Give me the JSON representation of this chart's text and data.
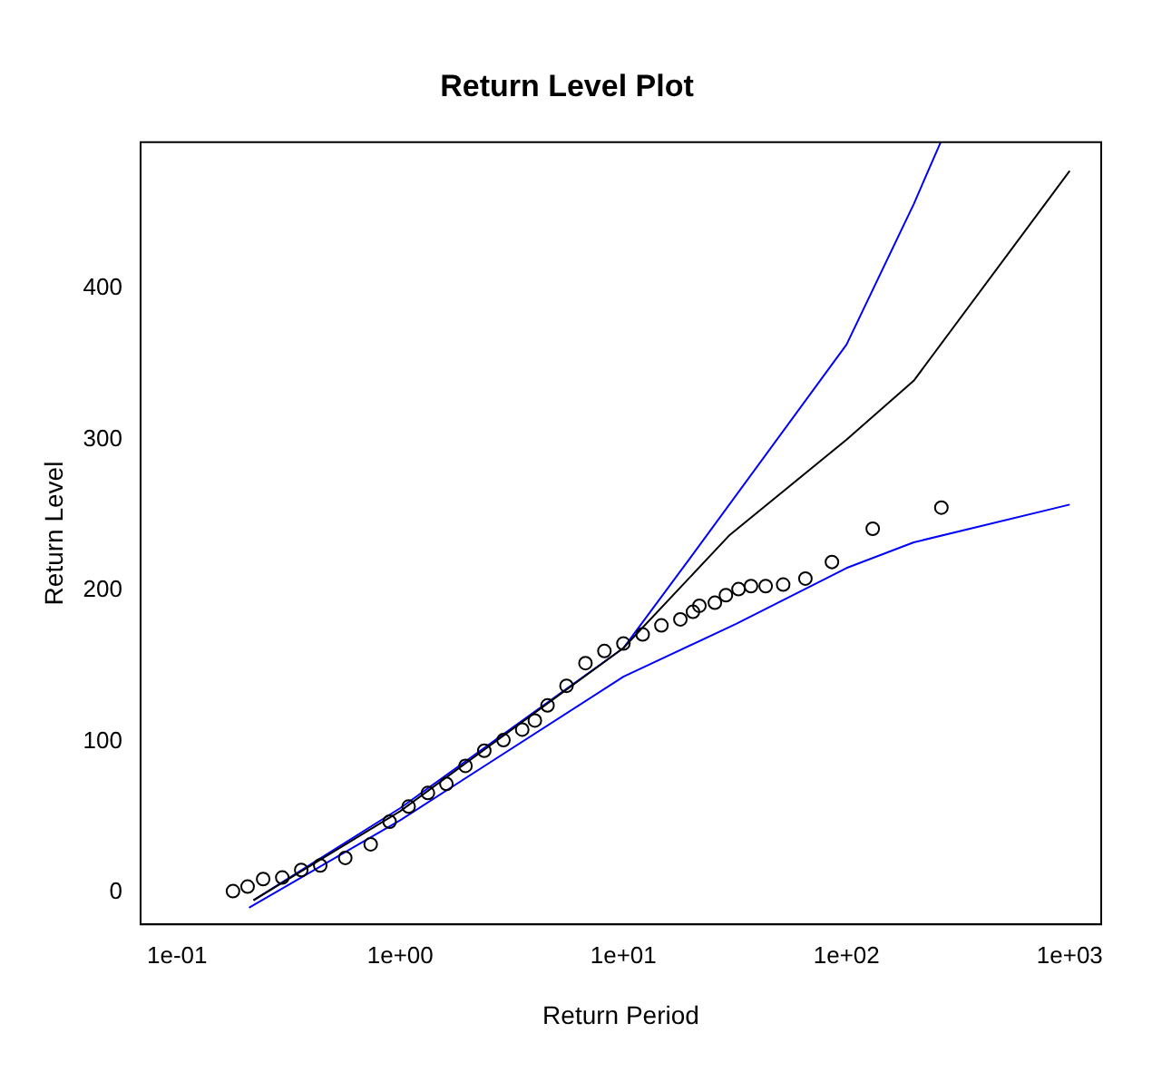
{
  "chart_data": {
    "type": "scatter",
    "title": "Return Level Plot",
    "xlabel": "Return Period",
    "ylabel": "Return Level",
    "log": "x",
    "grid": false,
    "legend": false,
    "xlim": [
      0.0686,
      1384
    ],
    "ylim": [
      -21,
      497
    ],
    "xticks": [
      {
        "value": 0.1,
        "label": "1e-01"
      },
      {
        "value": 1,
        "label": "1e+00"
      },
      {
        "value": 10,
        "label": "1e+01"
      },
      {
        "value": 100,
        "label": "1e+02"
      },
      {
        "value": 1000,
        "label": "1e+03"
      }
    ],
    "yticks": [
      0,
      100,
      200,
      300,
      400
    ],
    "series": [
      {
        "marker": "circle",
        "color": "#000000",
        "x": [
          0.178,
          0.207,
          0.243,
          0.296,
          0.36,
          0.438,
          0.567,
          0.737,
          0.896,
          1.09,
          1.33,
          1.61,
          1.96,
          2.38,
          2.9,
          3.52,
          4.01,
          4.57,
          5.56,
          6.76,
          8.22,
          10.0,
          12.2,
          14.8,
          18.0,
          20.5,
          21.9,
          25.7,
          28.8,
          32.8,
          37.3,
          43.4,
          52.0,
          65.4,
          86.0,
          131,
          266
        ],
        "values": [
          1,
          4,
          9,
          10,
          15,
          18,
          23,
          32,
          47,
          57,
          66,
          72,
          84,
          94,
          101,
          108,
          114,
          124,
          137,
          152,
          160,
          165,
          171,
          177,
          181,
          186,
          190,
          192,
          197,
          201,
          203,
          203,
          204,
          208,
          219,
          241,
          255
        ]
      },
      {
        "type": "line",
        "color": "#000000",
        "x": [
          0.22,
          1,
          10,
          30,
          100,
          200,
          1000
        ],
        "values": [
          -5,
          54,
          162,
          237,
          300,
          339,
          478
        ]
      },
      {
        "type": "line",
        "color": "#0000ff",
        "x": [
          0.22,
          1,
          10,
          20,
          100,
          200,
          264
        ],
        "values": [
          -5,
          56,
          162,
          222,
          363,
          456,
          497
        ]
      },
      {
        "type": "line",
        "color": "#0000ff",
        "x": [
          0.21,
          1,
          10,
          32,
          100,
          200,
          1000
        ],
        "values": [
          -10,
          48,
          143,
          178,
          215,
          232,
          257
        ]
      }
    ]
  }
}
